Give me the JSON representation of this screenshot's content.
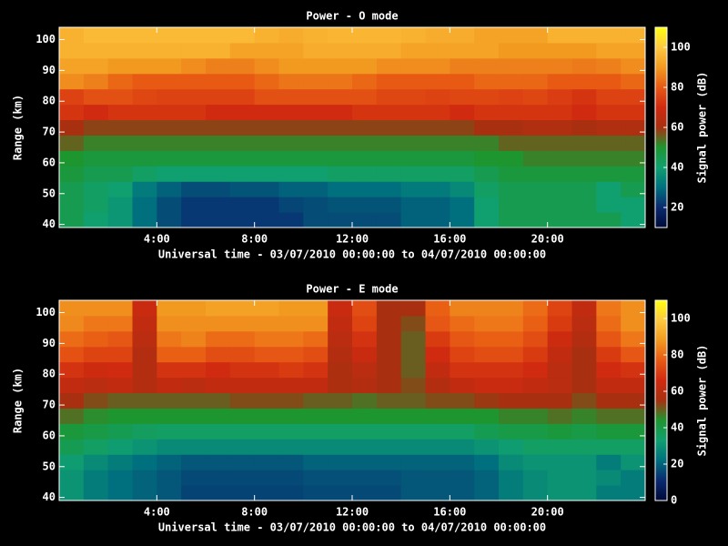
{
  "chart_data": [
    {
      "type": "heatmap",
      "title": "Power - O mode",
      "xlabel": "Universal time - 03/07/2010 00:00:00 to 04/07/2010 00:00:00",
      "ylabel": "Range (km)",
      "colorbar_label": "Signal power (dB)",
      "xlim": [
        0,
        24
      ],
      "ylim": [
        39,
        104
      ],
      "xticks": [
        {
          "value": 4,
          "label": "4:00"
        },
        {
          "value": 8,
          "label": "8:00"
        },
        {
          "value": 12,
          "label": "12:00"
        },
        {
          "value": 16,
          "label": "16:00"
        },
        {
          "value": 20,
          "label": "20:00"
        }
      ],
      "yticks": [
        40,
        50,
        60,
        70,
        80,
        90,
        100
      ],
      "xbins": [
        0,
        1,
        2,
        3,
        4,
        5,
        6,
        7,
        8,
        9,
        10,
        11,
        12,
        13,
        14,
        15,
        16,
        17,
        18,
        19,
        20,
        21,
        22,
        23,
        24
      ],
      "ybins": [
        39,
        44,
        49,
        54,
        59,
        64,
        69,
        74,
        79,
        84,
        89,
        94,
        99,
        104
      ],
      "clim": [
        10,
        110
      ],
      "cticks": [
        20,
        40,
        60,
        80,
        100
      ],
      "colors": [
        "#000a38",
        "#0a2a70",
        "#00707e",
        "#10a070",
        "#1e9630",
        "#a83010",
        "#d02a10",
        "#e85a14",
        "#f29a20",
        "#ffc840",
        "#ffff10"
      ],
      "z": [
        [
          45,
          40,
          38,
          30,
          25,
          22,
          22,
          22,
          22,
          22,
          25,
          25,
          25,
          25,
          28,
          28,
          30,
          40,
          45,
          45,
          45,
          45,
          45,
          40
        ],
        [
          45,
          42,
          38,
          30,
          25,
          22,
          22,
          22,
          22,
          24,
          25,
          26,
          26,
          26,
          28,
          28,
          30,
          40,
          45,
          45,
          45,
          45,
          40,
          40
        ],
        [
          45,
          42,
          40,
          32,
          28,
          25,
          25,
          26,
          26,
          28,
          28,
          30,
          30,
          30,
          32,
          32,
          35,
          42,
          45,
          45,
          45,
          45,
          40,
          45
        ],
        [
          48,
          45,
          45,
          42,
          40,
          40,
          40,
          40,
          40,
          40,
          40,
          42,
          42,
          42,
          42,
          42,
          42,
          45,
          48,
          48,
          48,
          48,
          48,
          48
        ],
        [
          50,
          48,
          48,
          48,
          48,
          48,
          48,
          48,
          48,
          48,
          48,
          48,
          48,
          48,
          48,
          48,
          48,
          50,
          50,
          52,
          52,
          52,
          52,
          52
        ],
        [
          55,
          52,
          52,
          52,
          52,
          52,
          52,
          52,
          52,
          52,
          52,
          52,
          52,
          52,
          52,
          52,
          52,
          52,
          55,
          55,
          55,
          55,
          55,
          55
        ],
        [
          60,
          58,
          58,
          58,
          58,
          58,
          58,
          58,
          58,
          58,
          58,
          58,
          58,
          58,
          58,
          58,
          58,
          60,
          60,
          62,
          62,
          60,
          62,
          62
        ],
        [
          72,
          70,
          72,
          72,
          72,
          72,
          70,
          70,
          70,
          70,
          70,
          70,
          72,
          72,
          72,
          72,
          70,
          72,
          72,
          72,
          72,
          70,
          72,
          72
        ],
        [
          75,
          78,
          78,
          76,
          75,
          75,
          75,
          75,
          78,
          78,
          78,
          78,
          78,
          76,
          76,
          75,
          76,
          76,
          75,
          76,
          74,
          72,
          75,
          75
        ],
        [
          88,
          86,
          82,
          80,
          80,
          80,
          80,
          80,
          82,
          84,
          84,
          84,
          82,
          80,
          80,
          80,
          80,
          82,
          82,
          82,
          80,
          80,
          80,
          82
        ],
        [
          92,
          92,
          90,
          90,
          90,
          88,
          86,
          86,
          88,
          90,
          90,
          90,
          90,
          88,
          88,
          88,
          86,
          86,
          86,
          86,
          86,
          85,
          86,
          88
        ],
        [
          95,
          95,
          95,
          95,
          95,
          95,
          95,
          92,
          92,
          92,
          94,
          94,
          94,
          94,
          92,
          92,
          92,
          92,
          90,
          90,
          90,
          90,
          92,
          92
        ],
        [
          95,
          97,
          97,
          97,
          97,
          97,
          97,
          97,
          95,
          94,
          95,
          96,
          96,
          96,
          95,
          94,
          94,
          92,
          92,
          92,
          95,
          95,
          95,
          95
        ]
      ]
    },
    {
      "type": "heatmap",
      "title": "Power - E mode",
      "xlabel": "Universal time - 03/07/2010 00:00:00 to 04/07/2010 00:00:00",
      "ylabel": "Range (km)",
      "colorbar_label": "Signal power (dB)",
      "xlim": [
        0,
        24
      ],
      "ylim": [
        39,
        104
      ],
      "xticks": [
        {
          "value": 4,
          "label": "4:00"
        },
        {
          "value": 8,
          "label": "8:00"
        },
        {
          "value": 12,
          "label": "12:00"
        },
        {
          "value": 16,
          "label": "16:00"
        },
        {
          "value": 20,
          "label": "20:00"
        }
      ],
      "yticks": [
        40,
        50,
        60,
        70,
        80,
        90,
        100
      ],
      "xbins": [
        0,
        1,
        2,
        3,
        4,
        5,
        6,
        7,
        8,
        9,
        10,
        11,
        12,
        13,
        14,
        15,
        16,
        17,
        18,
        19,
        20,
        21,
        22,
        23,
        24
      ],
      "ybins": [
        39,
        44,
        49,
        54,
        59,
        64,
        69,
        74,
        79,
        84,
        89,
        94,
        99,
        104
      ],
      "clim": [
        0,
        110
      ],
      "cticks": [
        0,
        20,
        40,
        60,
        80,
        100
      ],
      "colors": [
        "#000a38",
        "#0a2a70",
        "#00707e",
        "#10a070",
        "#1e9630",
        "#a83010",
        "#d02a10",
        "#e85a14",
        "#f29a20",
        "#ffc840",
        "#ffff10"
      ],
      "z": [
        [
          30,
          25,
          22,
          20,
          18,
          15,
          15,
          15,
          15,
          15,
          16,
          16,
          16,
          16,
          18,
          18,
          18,
          20,
          25,
          28,
          30,
          30,
          25,
          25
        ],
        [
          30,
          25,
          22,
          20,
          18,
          16,
          16,
          16,
          16,
          16,
          17,
          17,
          17,
          17,
          18,
          18,
          18,
          20,
          25,
          28,
          30,
          30,
          28,
          25
        ],
        [
          32,
          28,
          25,
          22,
          20,
          18,
          18,
          18,
          18,
          18,
          20,
          20,
          20,
          20,
          20,
          20,
          20,
          22,
          28,
          30,
          30,
          30,
          25,
          30
        ],
        [
          38,
          35,
          32,
          30,
          28,
          28,
          28,
          28,
          28,
          28,
          28,
          28,
          28,
          28,
          28,
          28,
          28,
          30,
          32,
          35,
          35,
          35,
          35,
          35
        ],
        [
          42,
          40,
          38,
          36,
          35,
          35,
          35,
          35,
          35,
          35,
          35,
          35,
          35,
          35,
          35,
          35,
          35,
          38,
          40,
          40,
          42,
          40,
          42,
          42
        ],
        [
          48,
          45,
          44,
          44,
          44,
          44,
          44,
          44,
          44,
          44,
          44,
          44,
          44,
          44,
          44,
          44,
          44,
          44,
          46,
          46,
          48,
          46,
          48,
          48
        ],
        [
          55,
          52,
          50,
          50,
          50,
          50,
          50,
          52,
          52,
          52,
          50,
          50,
          48,
          50,
          50,
          52,
          52,
          54,
          55,
          55,
          55,
          52,
          55,
          55
        ],
        [
          62,
          60,
          62,
          58,
          62,
          60,
          62,
          62,
          62,
          62,
          62,
          56,
          58,
          55,
          52,
          58,
          62,
          64,
          64,
          62,
          60,
          55,
          62,
          62
        ],
        [
          68,
          65,
          66,
          58,
          68,
          68,
          66,
          68,
          68,
          70,
          68,
          56,
          60,
          55,
          50,
          62,
          68,
          68,
          68,
          66,
          60,
          55,
          66,
          68
        ],
        [
          75,
          72,
          72,
          58,
          78,
          78,
          74,
          74,
          76,
          76,
          74,
          58,
          64,
          55,
          50,
          66,
          72,
          74,
          74,
          70,
          62,
          55,
          70,
          76
        ],
        [
          80,
          78,
          76,
          60,
          82,
          84,
          80,
          80,
          82,
          82,
          80,
          60,
          68,
          55,
          50,
          70,
          76,
          78,
          78,
          74,
          65,
          58,
          76,
          82
        ],
        [
          85,
          82,
          82,
          62,
          86,
          86,
          86,
          86,
          86,
          86,
          86,
          62,
          72,
          55,
          52,
          76,
          80,
          82,
          82,
          78,
          70,
          60,
          80,
          86
        ],
        [
          86,
          86,
          86,
          64,
          88,
          88,
          90,
          90,
          90,
          88,
          88,
          64,
          74,
          55,
          55,
          78,
          84,
          84,
          84,
          80,
          72,
          62,
          82,
          86
        ]
      ]
    }
  ]
}
